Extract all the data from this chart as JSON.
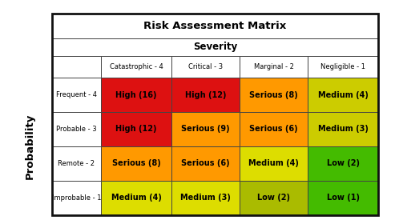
{
  "title": "Risk Assessment Matrix",
  "subtitle": "Severity",
  "ylabel": "Probability",
  "col_headers": [
    "Catastrophic - 4",
    "Critical - 3",
    "Marginal - 2",
    "Negligible - 1"
  ],
  "row_headers": [
    "Frequent - 4",
    "Probable - 3",
    "Remote - 2",
    "Improbable - 1"
  ],
  "cells": [
    [
      "High (16)",
      "High (12)",
      "Serious (8)",
      "Medium (4)"
    ],
    [
      "High (12)",
      "Serious (9)",
      "Serious (6)",
      "Medium (3)"
    ],
    [
      "Serious (8)",
      "Serious (6)",
      "Medium (4)",
      "Low (2)"
    ],
    [
      "Medium (4)",
      "Medium (3)",
      "Low (2)",
      "Low (1)"
    ]
  ],
  "cell_colors": [
    [
      "#dd1111",
      "#dd1111",
      "#ff9900",
      "#cccc00"
    ],
    [
      "#dd1111",
      "#ff9900",
      "#ff9900",
      "#cccc00"
    ],
    [
      "#ff9900",
      "#ff9900",
      "#dddd00",
      "#44bb00"
    ],
    [
      "#dddd00",
      "#dddd00",
      "#aabb00",
      "#44bb00"
    ]
  ],
  "text_color": "#000000",
  "border_color": "#444444",
  "fig_bg": "#ffffff",
  "prob_label_color": "#000000"
}
